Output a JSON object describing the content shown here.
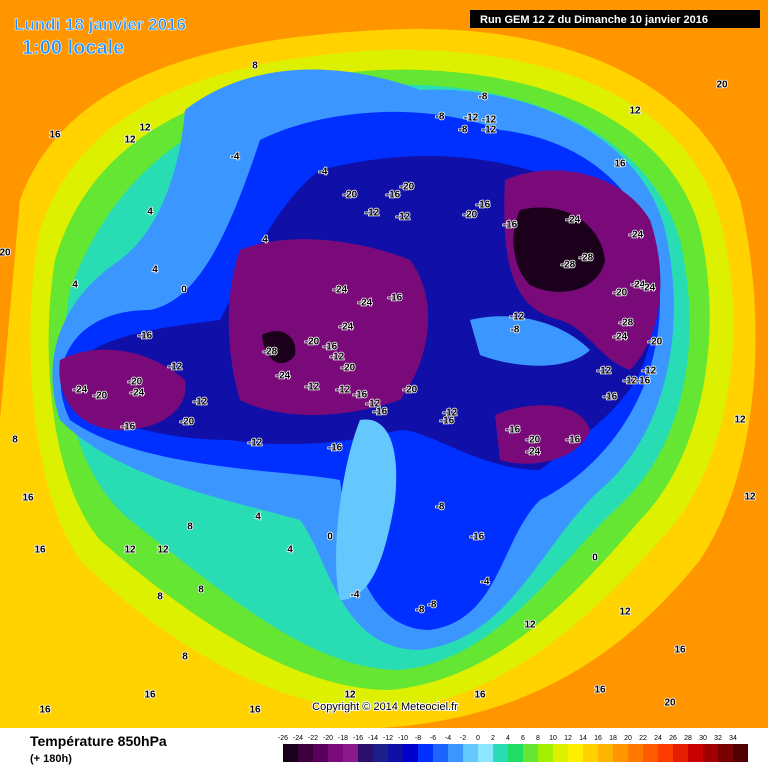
{
  "header": {
    "date": "Lundi 18 janvier 2016",
    "time": "1:00 locale",
    "run": "Run GEM 12 Z du Dimanche 10 janvier 2016"
  },
  "footer": {
    "title": "Température 850hPa",
    "lead": "(+ 180h)",
    "copyright": "Copyright © 2014 Meteociel.fr"
  },
  "legend": {
    "values": [
      -26,
      -24,
      -22,
      -20,
      -18,
      -16,
      -14,
      -12,
      -10,
      -8,
      -6,
      -4,
      -2,
      0,
      2,
      4,
      6,
      8,
      10,
      12,
      14,
      16,
      18,
      20,
      22,
      24,
      26,
      28,
      30,
      32,
      34
    ],
    "colors": [
      "#1a001a",
      "#3d003d",
      "#5a005a",
      "#7a0a7a",
      "#8a1a8a",
      "#2b0f6e",
      "#1d1d8c",
      "#1010a8",
      "#0000cd",
      "#0030ff",
      "#1e64ff",
      "#3c96ff",
      "#64c8ff",
      "#8ce6ff",
      "#28dcb4",
      "#1edc64",
      "#64e632",
      "#a0f000",
      "#dcf000",
      "#fff000",
      "#ffd200",
      "#ffb400",
      "#ff9600",
      "#ff7800",
      "#ff5a00",
      "#ff3c00",
      "#e61e00",
      "#c80000",
      "#a00000",
      "#780000",
      "#500000"
    ]
  },
  "contour_labels": [
    -8,
    -8,
    -12,
    -12,
    -8,
    -12,
    -4,
    -4,
    -20,
    -16,
    -20,
    -12,
    -12,
    -20,
    -16,
    -16,
    -24,
    -24,
    -28,
    -28,
    -20,
    -24,
    -24,
    -28,
    -24,
    -20,
    -12,
    -8,
    -24,
    -24,
    -16,
    -24,
    -28,
    -20,
    -16,
    -12,
    -20,
    -24,
    -12,
    -12,
    -16,
    -20,
    -12,
    -16,
    -16,
    -12,
    -24,
    -20,
    -20,
    -24,
    -12,
    -20,
    -16,
    -12,
    -16,
    -12,
    -16,
    -16,
    -20,
    -24,
    -16,
    -16,
    -12,
    -16,
    -12,
    -12,
    -8,
    -16,
    0,
    4,
    4,
    -4,
    -8,
    -8,
    -4,
    0,
    12,
    16,
    12,
    16,
    12,
    12,
    8,
    12,
    12,
    16,
    16,
    16,
    12,
    12,
    12,
    20,
    20,
    20,
    16,
    8,
    8,
    8,
    16,
    16,
    16,
    16,
    12,
    8,
    4,
    4,
    0,
    4,
    4,
    8
  ]
}
